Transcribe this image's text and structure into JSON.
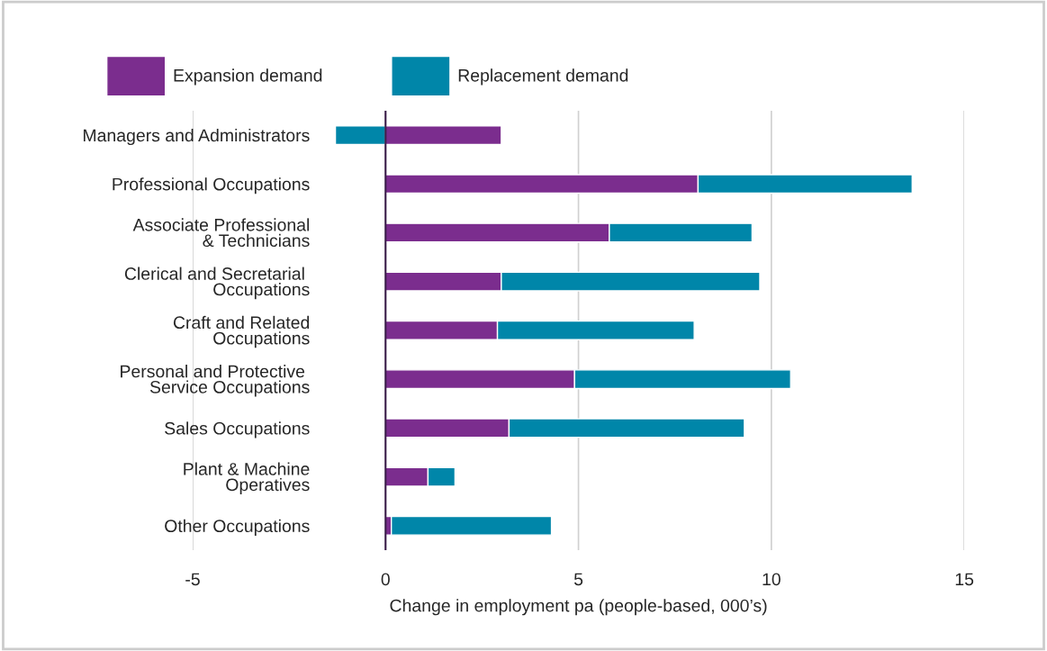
{
  "chart_data": {
    "type": "bar",
    "orientation": "horizontal",
    "stacked": true,
    "categories": [
      "Managers and Administrators",
      "Professional Occupations",
      "Associate Professional\n& Technicians",
      "Clerical and Secretarial \nOccupations",
      "Craft and Related\nOccupations",
      "Personal and Protective \nService Occupations",
      "Sales Occupations",
      "Plant & Machine\nOperatives",
      "Other Occupations"
    ],
    "series": [
      {
        "name": "Expansion demand",
        "color": "#7b2d8e",
        "values": [
          3.0,
          8.1,
          5.8,
          3.0,
          2.9,
          4.9,
          3.2,
          1.1,
          0.15
        ]
      },
      {
        "name": "Replacement demand",
        "color": "#0086a9",
        "values": [
          -1.3,
          5.55,
          3.7,
          6.7,
          5.1,
          5.6,
          6.1,
          0.7,
          4.15
        ]
      }
    ],
    "xlabel": "Change in employment pa (people-based, 000’s)",
    "xlim": [
      -5,
      15
    ],
    "xticks": [
      -5,
      0,
      5,
      10,
      15
    ],
    "grid": "x",
    "legend": "top"
  }
}
